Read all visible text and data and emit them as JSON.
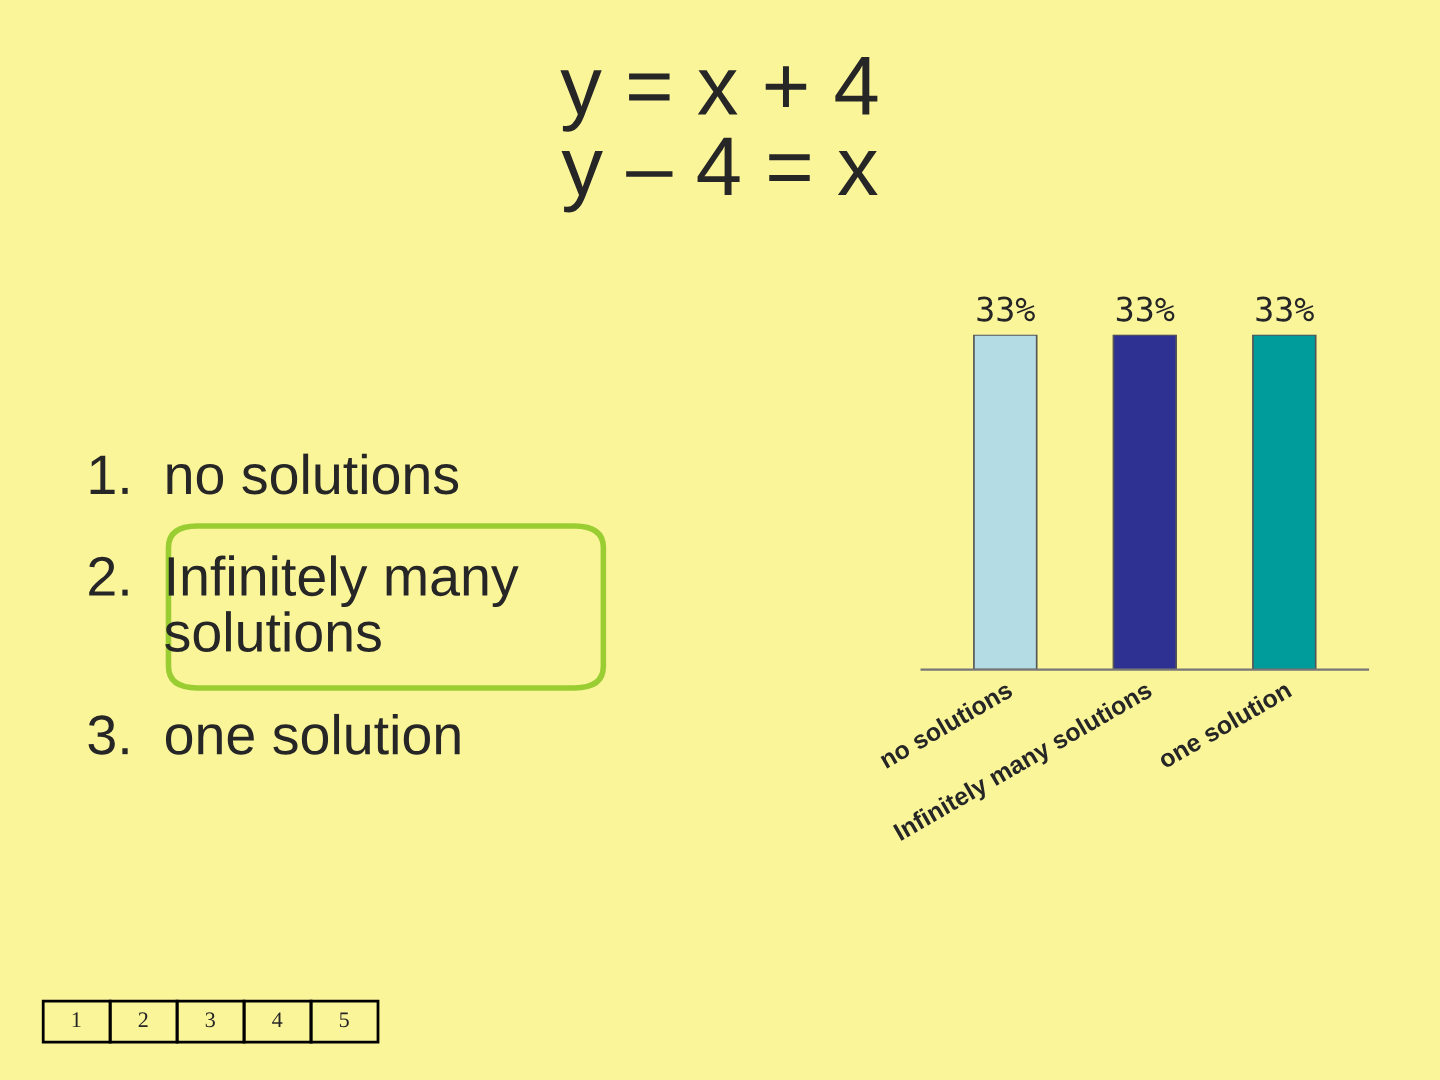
{
  "chart_data": {
    "type": "bar",
    "title": "y = x + 4\ny – 4 = x",
    "categories": [
      "no solutions",
      "Infinitely many solutions",
      "one solution"
    ],
    "values": [
      33,
      33,
      33
    ],
    "value_labels": [
      "33%",
      "33%",
      "33%"
    ],
    "colors": [
      "#b4dce4",
      "#2e3192",
      "#009c9c"
    ],
    "annotations": [
      "1.  no solutions",
      "2.  Infinitely many\n     solutions",
      "3.  one solution",
      "1",
      "2",
      "3",
      "4",
      "5"
    ]
  }
}
